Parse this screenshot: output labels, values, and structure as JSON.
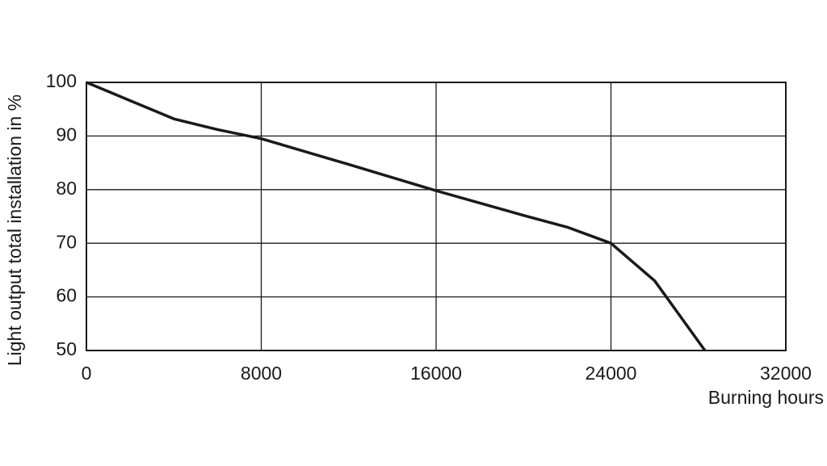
{
  "chart_data": {
    "type": "line",
    "y_label": "Light output total installation in %",
    "x_label": "Burning hours",
    "xlim": [
      0,
      32000
    ],
    "xticks": [
      0,
      8000,
      16000,
      24000,
      32000
    ],
    "ylim": [
      50,
      100
    ],
    "yticks": [
      50,
      60,
      70,
      80,
      90,
      100
    ],
    "grid": true,
    "series": [
      {
        "color": "#1a1a1a",
        "x": [
          0,
          1000,
          2000,
          4000,
          6000,
          8000,
          12000,
          16000,
          20000,
          22000,
          24000,
          26000,
          28300
        ],
        "values": [
          100,
          98.3,
          96.6,
          93.2,
          91.2,
          89.5,
          84.7,
          79.8,
          75.2,
          73,
          70,
          63,
          50
        ]
      }
    ]
  }
}
